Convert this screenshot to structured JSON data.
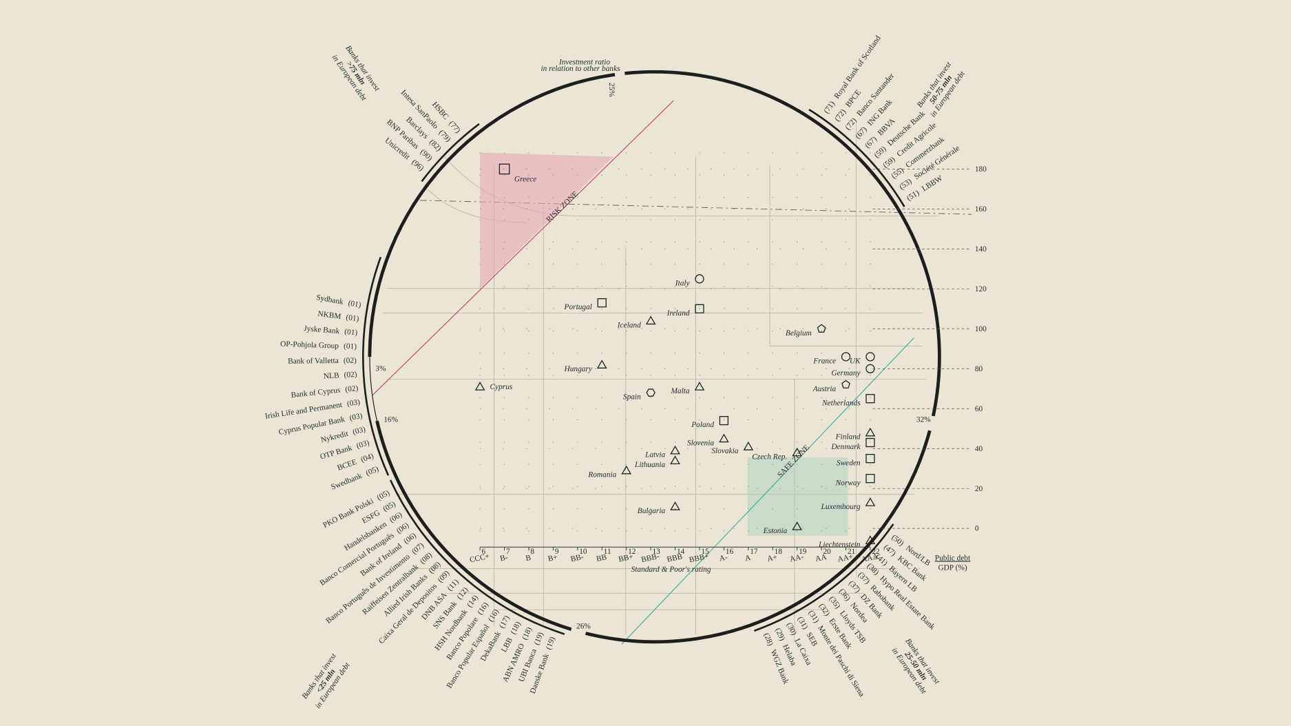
{
  "chart_data": {
    "type": "scatter",
    "x_label": "Standard & Poor's rating",
    "y_label": [
      "Public debt",
      "GDP (%)"
    ],
    "xlim": [
      6,
      22
    ],
    "xticks": [
      {
        "value": 6,
        "label": "CCC+"
      },
      {
        "value": 7,
        "label": "B-"
      },
      {
        "value": 8,
        "label": "B"
      },
      {
        "value": 9,
        "label": "B+"
      },
      {
        "value": 10,
        "label": "BB-"
      },
      {
        "value": 11,
        "label": "BB"
      },
      {
        "value": 12,
        "label": "BB+"
      },
      {
        "value": 13,
        "label": "BBB-"
      },
      {
        "value": 14,
        "label": "BBB"
      },
      {
        "value": 15,
        "label": "BBB+"
      },
      {
        "value": 16,
        "label": "A-"
      },
      {
        "value": 17,
        "label": "A"
      },
      {
        "value": 18,
        "label": "A+"
      },
      {
        "value": 19,
        "label": "AA-"
      },
      {
        "value": 20,
        "label": "AA"
      },
      {
        "value": 21,
        "label": "AA+"
      },
      {
        "value": 22,
        "label": "AAA"
      }
    ],
    "ylim": [
      -11,
      180
    ],
    "yticks": [
      0,
      20,
      40,
      60,
      80,
      100,
      120,
      140,
      160,
      180
    ],
    "grid": true,
    "points": [
      {
        "name": "Greece",
        "x": 7,
        "y": 180,
        "marker": "square",
        "color": "#a3265c"
      },
      {
        "name": "Italy",
        "x": 15,
        "y": 125,
        "marker": "circle",
        "color": "#2b2b2b"
      },
      {
        "name": "Portugal",
        "x": 11,
        "y": 113,
        "marker": "square",
        "color": "#2b2b2b"
      },
      {
        "name": "Ireland",
        "x": 15,
        "y": 110,
        "marker": "square",
        "color": "#2b2b2b"
      },
      {
        "name": "Iceland",
        "x": 13,
        "y": 104,
        "marker": "triangle",
        "color": "#2b2b2b"
      },
      {
        "name": "Belgium",
        "x": 20,
        "y": 100,
        "marker": "pentagon",
        "color": "#2b2b2b"
      },
      {
        "name": "France",
        "x": 21,
        "y": 86,
        "marker": "circle",
        "color": "#2b2b2b"
      },
      {
        "name": "UK",
        "x": 22,
        "y": 86,
        "marker": "circle",
        "color": "#2b2b2b"
      },
      {
        "name": "Germany",
        "x": 22,
        "y": 80,
        "marker": "circle",
        "color": "#2b2b2b"
      },
      {
        "name": "Hungary",
        "x": 11,
        "y": 82,
        "marker": "triangle",
        "color": "#2b2b2b"
      },
      {
        "name": "Cyprus",
        "x": 6,
        "y": 71,
        "marker": "triangle",
        "color": "#2b2b2b"
      },
      {
        "name": "Malta",
        "x": 15,
        "y": 71,
        "marker": "triangle",
        "color": "#2b2b2b"
      },
      {
        "name": "Austria",
        "x": 21,
        "y": 72,
        "marker": "pentagon",
        "color": "#2b2b2b"
      },
      {
        "name": "Spain",
        "x": 13,
        "y": 68,
        "marker": "hexagon",
        "color": "#2b2b2b"
      },
      {
        "name": "Netherlands",
        "x": 22,
        "y": 65,
        "marker": "square",
        "color": "#2b2b2b"
      },
      {
        "name": "Poland",
        "x": 16,
        "y": 54,
        "marker": "square",
        "color": "#2b2b2b"
      },
      {
        "name": "Finland",
        "x": 22,
        "y": 48,
        "marker": "triangle",
        "color": "#2b2b2b"
      },
      {
        "name": "Slovenia",
        "x": 16,
        "y": 45,
        "marker": "triangle",
        "color": "#2b2b2b"
      },
      {
        "name": "Denmark",
        "x": 22,
        "y": 43,
        "marker": "square",
        "color": "#2b2b2b"
      },
      {
        "name": "Slovakia",
        "x": 17,
        "y": 41,
        "marker": "triangle",
        "color": "#2b2b2b"
      },
      {
        "name": "Latvia",
        "x": 14,
        "y": 39,
        "marker": "triangle",
        "color": "#2b2b2b"
      },
      {
        "name": "Czech Rep.",
        "x": 19,
        "y": 38,
        "marker": "triangle",
        "color": "#2b2b2b"
      },
      {
        "name": "Sweden",
        "x": 22,
        "y": 35,
        "marker": "square",
        "color": "#2b2b2b"
      },
      {
        "name": "Lithuania",
        "x": 14,
        "y": 34,
        "marker": "triangle",
        "color": "#2b2b2b"
      },
      {
        "name": "Romania",
        "x": 12,
        "y": 29,
        "marker": "triangle",
        "color": "#2b2b2b"
      },
      {
        "name": "Norway",
        "x": 22,
        "y": 25,
        "marker": "square",
        "color": "#2b2b2b"
      },
      {
        "name": "Luxembourg",
        "x": 22,
        "y": 13,
        "marker": "triangle",
        "color": "#2b2b2b"
      },
      {
        "name": "Bulgaria",
        "x": 14,
        "y": 11,
        "marker": "triangle",
        "color": "#2b2b2b"
      },
      {
        "name": "Estonia",
        "x": 19,
        "y": 1,
        "marker": "triangle",
        "color": "#2b2b2b"
      },
      {
        "name": "Liechtenstein",
        "x": 22,
        "y": -6,
        "marker": "triangle",
        "color": "#2b2b2b"
      }
    ],
    "zones": [
      "RISK ZONE",
      "SAFE ZONE"
    ],
    "ratio_title": [
      "Investment ratio",
      "in relation to other banks"
    ],
    "ratio_labels": [
      "25%",
      "32%",
      "26%",
      "16%",
      "3%"
    ],
    "bank_groups": [
      {
        "header": [
          "Banks that invest",
          ">75 mln",
          "in European debt"
        ],
        "banks": [
          {
            "name": "HSBC",
            "count": "(77)"
          },
          {
            "name": "Intesa SanPaolo",
            "count": "(79)"
          },
          {
            "name": "Barclays",
            "count": "(82)"
          },
          {
            "name": "BNP Paribas",
            "count": "(90)"
          },
          {
            "name": "Unicredit",
            "count": "(96)"
          }
        ]
      },
      {
        "header": [
          "Banks that invest",
          "50-75 mln",
          "in European debt"
        ],
        "banks": [
          {
            "name": "Royal Bank of Scotland",
            "count": "(71)"
          },
          {
            "name": "BPCE",
            "count": "(72)"
          },
          {
            "name": "Banco Santander",
            "count": "(72)"
          },
          {
            "name": "ING Bank",
            "count": "(67)"
          },
          {
            "name": "BBVA",
            "count": "(67)"
          },
          {
            "name": "Deutsche Bank",
            "count": "(59)"
          },
          {
            "name": "Credit Agricole",
            "count": "(59)"
          },
          {
            "name": "Commerzbank",
            "count": "(55)"
          },
          {
            "name": "Société Générale",
            "count": "(53)"
          },
          {
            "name": "LBBW",
            "count": "(51)"
          }
        ]
      },
      {
        "banks": [
          {
            "name": "Sydbank",
            "count": "(01)"
          },
          {
            "name": "NKBM",
            "count": "(01)"
          },
          {
            "name": "Jyske Bank",
            "count": "(01)"
          },
          {
            "name": "OP-Pohjola Group",
            "count": "(01)"
          },
          {
            "name": "Bank of Valletta",
            "count": "(02)"
          },
          {
            "name": "NLB",
            "count": "(02)"
          },
          {
            "name": "Bank of Cyprus",
            "count": "(02)"
          },
          {
            "name": "Irish Life and Permanent",
            "count": "(03)"
          },
          {
            "name": "Cyprus Popular Bank",
            "count": "(03)"
          },
          {
            "name": "Nykredit",
            "count": "(03)"
          },
          {
            "name": "OTP Bank",
            "count": "(03)"
          },
          {
            "name": "BCEE",
            "count": "(04)"
          },
          {
            "name": "Swedbank",
            "count": "(05)"
          }
        ]
      },
      {
        "header": [
          "Banks that invest",
          "<25 mln",
          "in European debt"
        ],
        "banks": [
          {
            "name": "PKO Bank Polski",
            "count": "(05)"
          },
          {
            "name": "ESFG",
            "count": "(05)"
          },
          {
            "name": "Handelsbanken",
            "count": "(06)"
          },
          {
            "name": "Banco Comercial Português",
            "count": "(06)"
          },
          {
            "name": "Bank of Ireland",
            "count": "(06)"
          },
          {
            "name": "Banco Português de Investimento",
            "count": "(07)"
          },
          {
            "name": "Raiffeisen Zentralbank",
            "count": "(08)"
          },
          {
            "name": "Allied Irish Banks",
            "count": "(08)"
          },
          {
            "name": "Caixa Geral de Depositos",
            "count": "(09)"
          },
          {
            "name": "DNB ASA",
            "count": "(11)"
          },
          {
            "name": "SNS Bank",
            "count": "(12)"
          },
          {
            "name": "HSH Nordbank",
            "count": "(14)"
          },
          {
            "name": "Banco Popolare",
            "count": "(16)"
          },
          {
            "name": "Banco Popular Español",
            "count": "(16)"
          },
          {
            "name": "DekaBank",
            "count": "(17)"
          },
          {
            "name": "LBB",
            "count": "(18)"
          },
          {
            "name": "ABN AMRO",
            "count": "(18)"
          },
          {
            "name": "UBI Banca",
            "count": "(19)"
          },
          {
            "name": "Danske Bank",
            "count": "(19)"
          }
        ]
      },
      {
        "header": [
          "Banks that invest",
          "25-50 mln",
          "in European debt"
        ],
        "banks": [
          {
            "name": "Nord/LB",
            "count": "(50)"
          },
          {
            "name": "KBC Bank",
            "count": "(47)"
          },
          {
            "name": "Bayern LB",
            "count": "(41)"
          },
          {
            "name": "Hypo Real Estate Bank",
            "count": "(38)"
          },
          {
            "name": "Rabobank",
            "count": "(37)"
          },
          {
            "name": "DZ Bank",
            "count": "(37)"
          },
          {
            "name": "Nordea",
            "count": "(36)"
          },
          {
            "name": "Lloyds TSB",
            "count": "(35)"
          },
          {
            "name": "Erste Bank",
            "count": "(32)"
          },
          {
            "name": "Monte dei Paschi di Siena",
            "count": "(31)"
          },
          {
            "name": "SEB",
            "count": "(31)"
          },
          {
            "name": "La Caixa",
            "count": "(30)"
          },
          {
            "name": "Helaba",
            "count": "(29)"
          },
          {
            "name": "WGZ Bank",
            "count": "(28)"
          }
        ]
      }
    ]
  }
}
